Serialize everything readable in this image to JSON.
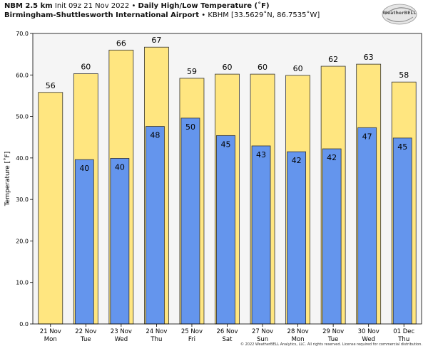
{
  "header": {
    "model": "NBM 2.5 km",
    "init": "Init 09z 21 Nov 2022",
    "sep": "•",
    "product": "Daily High/Low Temperature (˚F)",
    "location": "Birmingham-Shuttlesworth International Airport",
    "station": "KBHM [33.5629˚N, 86.7535˚W]"
  },
  "logo": {
    "text": "WeatherBELL"
  },
  "copyright": "© 2022 WeatherBELL Analytics, LLC. All rights reserved. License required for commercial distribution.",
  "colors": {
    "high": "#ffe680",
    "low": "#6495ed",
    "plot_bg": "#f5f5f5",
    "edge": "#333333"
  },
  "chart_data": {
    "type": "bar",
    "ylabel": "Temperature [˚F]",
    "ylim": [
      0,
      70
    ],
    "yticks": [
      "0.0",
      "10.0",
      "20.0",
      "30.0",
      "40.0",
      "50.0",
      "60.0",
      "70.0"
    ],
    "grid": false,
    "categories": [
      "21 Nov",
      "22 Nov",
      "23 Nov",
      "24 Nov",
      "25 Nov",
      "26 Nov",
      "27 Nov",
      "28 Nov",
      "29 Nov",
      "30 Nov",
      "01 Dec"
    ],
    "weekdays": [
      "Mon",
      "Tue",
      "Wed",
      "Thu",
      "Fri",
      "Sat",
      "Sun",
      "Mon",
      "Tue",
      "Wed",
      "Thu"
    ],
    "series": [
      {
        "values": [
          55.8,
          60.3,
          66.0,
          66.7,
          59.2,
          60.2,
          60.2,
          59.9,
          62.1,
          62.6,
          58.3
        ],
        "labels": [
          "56",
          "60",
          "66",
          "67",
          "59",
          "60",
          "60",
          "60",
          "62",
          "63",
          "58"
        ]
      },
      {
        "values": [
          null,
          39.6,
          39.9,
          47.6,
          49.6,
          45.4,
          42.9,
          41.5,
          42.2,
          47.3,
          44.8
        ],
        "labels": [
          "",
          "40",
          "40",
          "48",
          "50",
          "45",
          "43",
          "42",
          "42",
          "47",
          "45"
        ]
      }
    ]
  }
}
